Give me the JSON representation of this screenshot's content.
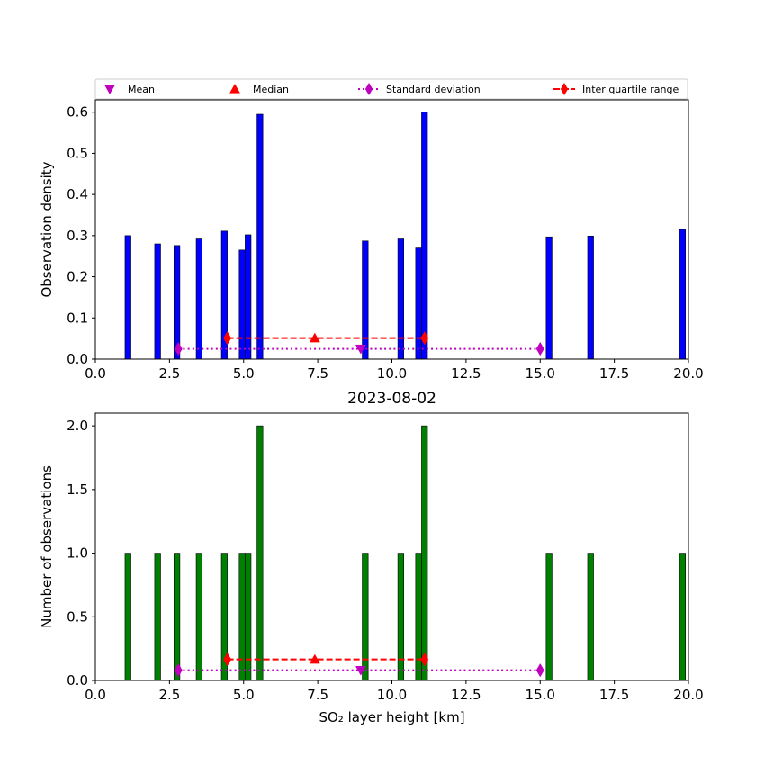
{
  "legend": {
    "placement": "above-top-panel",
    "items": [
      {
        "label": "Mean",
        "marker": "triangle-down",
        "color": "#bf00bf",
        "line": "none"
      },
      {
        "label": "Median",
        "marker": "triangle-up",
        "color": "#ff0000",
        "line": "none"
      },
      {
        "label": "Standard deviation",
        "marker": "diamond",
        "color": "#bf00bf",
        "line": "dotted"
      },
      {
        "label": "Inter quartile range",
        "marker": "diamond",
        "color": "#ff0000",
        "line": "dashed"
      }
    ]
  },
  "chart_data": [
    {
      "type": "bar",
      "title": "",
      "xlabel": "",
      "ylabel": "Observation density",
      "xlim": [
        0,
        20
      ],
      "ylim": [
        0,
        0.63
      ],
      "xticks": [
        "0.0",
        "2.5",
        "5.0",
        "7.5",
        "10.0",
        "12.5",
        "15.0",
        "17.5",
        "20.0"
      ],
      "yticks": [
        "0.0",
        "0.1",
        "0.2",
        "0.3",
        "0.4",
        "0.5",
        "0.6"
      ],
      "grid": false,
      "bar_color": "#0000ff",
      "bar_width": 0.2,
      "bars": [
        {
          "x": 1.1,
          "value": 0.3
        },
        {
          "x": 2.1,
          "value": 0.28
        },
        {
          "x": 2.75,
          "value": 0.276
        },
        {
          "x": 3.5,
          "value": 0.292
        },
        {
          "x": 4.35,
          "value": 0.311
        },
        {
          "x": 4.95,
          "value": 0.265
        },
        {
          "x": 5.15,
          "value": 0.302
        },
        {
          "x": 5.55,
          "value": 0.595
        },
        {
          "x": 9.1,
          "value": 0.287
        },
        {
          "x": 10.3,
          "value": 0.292
        },
        {
          "x": 10.9,
          "value": 0.27
        },
        {
          "x": 11.1,
          "value": 0.6
        },
        {
          "x": 15.3,
          "value": 0.297
        },
        {
          "x": 16.7,
          "value": 0.299
        },
        {
          "x": 19.8,
          "value": 0.315
        }
      ],
      "statistics": {
        "mean": {
          "x": 8.95,
          "y": 0.025
        },
        "median": {
          "x": 7.4,
          "y": 0.051
        },
        "std": {
          "x": [
            2.8,
            15.0
          ],
          "y": 0.025
        },
        "iqr": {
          "x": [
            4.45,
            11.1
          ],
          "y": 0.051
        }
      }
    },
    {
      "type": "bar",
      "title": "2023-08-02",
      "xlabel": "SO₂ layer height [km]",
      "ylabel": "Number of observations",
      "xlim": [
        0,
        20
      ],
      "ylim": [
        0,
        2.1
      ],
      "xticks": [
        "0.0",
        "2.5",
        "5.0",
        "7.5",
        "10.0",
        "12.5",
        "15.0",
        "17.5",
        "20.0"
      ],
      "yticks": [
        "0.0",
        "0.5",
        "1.0",
        "1.5",
        "2.0"
      ],
      "grid": false,
      "bar_color": "#008000",
      "bar_width": 0.2,
      "bars": [
        {
          "x": 1.1,
          "value": 1
        },
        {
          "x": 2.1,
          "value": 1
        },
        {
          "x": 2.75,
          "value": 1
        },
        {
          "x": 3.5,
          "value": 1
        },
        {
          "x": 4.35,
          "value": 1
        },
        {
          "x": 4.95,
          "value": 1
        },
        {
          "x": 5.15,
          "value": 1
        },
        {
          "x": 5.55,
          "value": 2
        },
        {
          "x": 9.1,
          "value": 1
        },
        {
          "x": 10.3,
          "value": 1
        },
        {
          "x": 10.9,
          "value": 1
        },
        {
          "x": 11.1,
          "value": 2
        },
        {
          "x": 15.3,
          "value": 1
        },
        {
          "x": 16.7,
          "value": 1
        },
        {
          "x": 19.8,
          "value": 1
        }
      ],
      "statistics": {
        "mean": {
          "x": 8.95,
          "y": 0.08
        },
        "median": {
          "x": 7.4,
          "y": 0.165
        },
        "std": {
          "x": [
            2.8,
            15.0
          ],
          "y": 0.08
        },
        "iqr": {
          "x": [
            4.45,
            11.1
          ],
          "y": 0.165
        }
      }
    }
  ]
}
